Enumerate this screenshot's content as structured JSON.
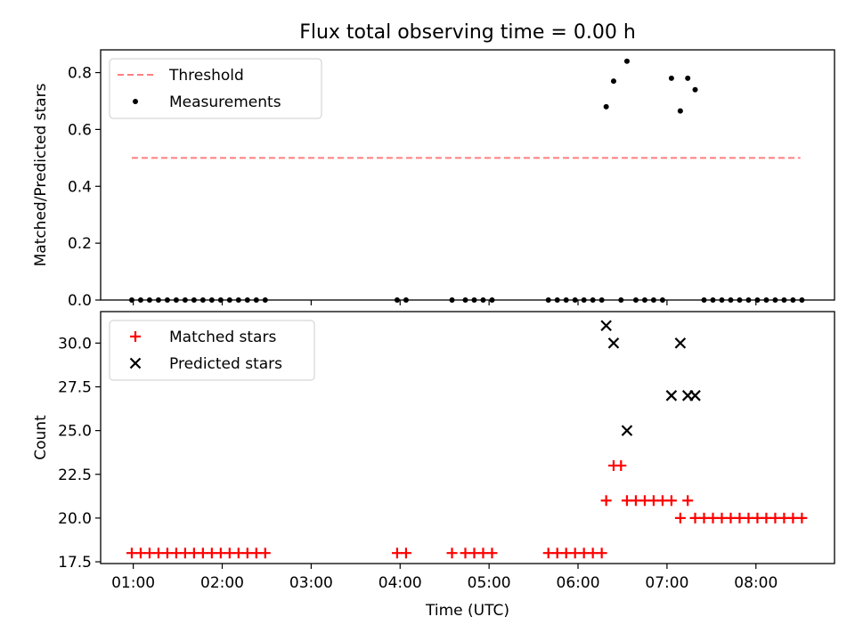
{
  "title": "Flux total observing time = 0.00 h",
  "colors": {
    "threshold": "#ff7f7f",
    "measurements": "#000000",
    "matched": "#ff0000",
    "predicted": "#000000"
  },
  "chart_data": [
    {
      "type": "scatter",
      "ylabel": "Matched/Predicted stars",
      "ylim": [
        0,
        0.88
      ],
      "yticks": [
        0.0,
        0.2,
        0.4,
        0.6,
        0.8
      ],
      "ytick_labels": [
        "0.0",
        "0.2",
        "0.4",
        "0.6",
        "0.8"
      ],
      "xlim": [
        "00:38",
        "08:53"
      ],
      "xticks": [
        "01:00",
        "02:00",
        "03:00",
        "04:00",
        "05:00",
        "06:00",
        "07:00",
        "08:00"
      ],
      "show_xtick_labels": false,
      "grid": false,
      "legend": {
        "placement": "top-left",
        "entries": [
          "Threshold",
          "Measurements"
        ]
      },
      "series": [
        {
          "name": "Threshold",
          "kind": "dashed-line",
          "x": [
            "00:59",
            "08:30"
          ],
          "y": [
            0.5,
            0.5
          ]
        },
        {
          "name": "Measurements",
          "kind": "dots",
          "points": [
            [
              "00:59",
              0
            ],
            [
              "01:05",
              0
            ],
            [
              "01:11",
              0
            ],
            [
              "01:17",
              0
            ],
            [
              "01:23",
              0
            ],
            [
              "01:29",
              0
            ],
            [
              "01:35",
              0
            ],
            [
              "01:41",
              0
            ],
            [
              "01:47",
              0
            ],
            [
              "01:53",
              0
            ],
            [
              "01:59",
              0
            ],
            [
              "02:05",
              0
            ],
            [
              "02:11",
              0
            ],
            [
              "02:17",
              0
            ],
            [
              "02:23",
              0
            ],
            [
              "02:29",
              0
            ],
            [
              "03:58",
              0
            ],
            [
              "04:04",
              0
            ],
            [
              "04:35",
              0
            ],
            [
              "04:44",
              0
            ],
            [
              "04:50",
              0
            ],
            [
              "04:56",
              0
            ],
            [
              "05:02",
              0
            ],
            [
              "05:40",
              0
            ],
            [
              "05:46",
              0
            ],
            [
              "05:52",
              0
            ],
            [
              "05:58",
              0
            ],
            [
              "06:04",
              0
            ],
            [
              "06:10",
              0
            ],
            [
              "06:16",
              0
            ],
            [
              "06:19",
              0.68
            ],
            [
              "06:24",
              0.77
            ],
            [
              "06:29",
              0
            ],
            [
              "06:33",
              0.84
            ],
            [
              "06:39",
              0
            ],
            [
              "06:45",
              0
            ],
            [
              "06:51",
              0
            ],
            [
              "06:57",
              0
            ],
            [
              "07:03",
              0.78
            ],
            [
              "07:09",
              0.665
            ],
            [
              "07:14",
              0.78
            ],
            [
              "07:19",
              0.74
            ],
            [
              "07:25",
              0
            ],
            [
              "07:31",
              0
            ],
            [
              "07:37",
              0
            ],
            [
              "07:43",
              0
            ],
            [
              "07:49",
              0
            ],
            [
              "07:55",
              0
            ],
            [
              "08:01",
              0
            ],
            [
              "08:07",
              0
            ],
            [
              "08:13",
              0
            ],
            [
              "08:19",
              0
            ],
            [
              "08:25",
              0
            ],
            [
              "08:31",
              0
            ]
          ]
        }
      ]
    },
    {
      "type": "scatter",
      "xlabel": "Time (UTC)",
      "ylabel": "Count",
      "ylim": [
        17.4,
        31.8
      ],
      "yticks": [
        17.5,
        20.0,
        22.5,
        25.0,
        27.5,
        30.0
      ],
      "ytick_labels": [
        "17.5",
        "20.0",
        "22.5",
        "25.0",
        "27.5",
        "30.0"
      ],
      "xlim": [
        "00:38",
        "08:53"
      ],
      "xticks": [
        "01:00",
        "02:00",
        "03:00",
        "04:00",
        "05:00",
        "06:00",
        "07:00",
        "08:00"
      ],
      "xtick_labels": [
        "01:00",
        "02:00",
        "03:00",
        "04:00",
        "05:00",
        "06:00",
        "07:00",
        "08:00"
      ],
      "grid": false,
      "legend": {
        "placement": "top-left",
        "entries": [
          "Matched stars",
          "Predicted stars"
        ]
      },
      "series": [
        {
          "name": "Matched stars",
          "kind": "plus",
          "points": [
            [
              "00:59",
              18
            ],
            [
              "01:05",
              18
            ],
            [
              "01:11",
              18
            ],
            [
              "01:17",
              18
            ],
            [
              "01:23",
              18
            ],
            [
              "01:29",
              18
            ],
            [
              "01:35",
              18
            ],
            [
              "01:41",
              18
            ],
            [
              "01:47",
              18
            ],
            [
              "01:53",
              18
            ],
            [
              "01:59",
              18
            ],
            [
              "02:05",
              18
            ],
            [
              "02:11",
              18
            ],
            [
              "02:17",
              18
            ],
            [
              "02:23",
              18
            ],
            [
              "02:29",
              18
            ],
            [
              "03:58",
              18
            ],
            [
              "04:04",
              18
            ],
            [
              "04:35",
              18
            ],
            [
              "04:44",
              18
            ],
            [
              "04:50",
              18
            ],
            [
              "04:56",
              18
            ],
            [
              "05:02",
              18
            ],
            [
              "05:40",
              18
            ],
            [
              "05:46",
              18
            ],
            [
              "05:52",
              18
            ],
            [
              "05:58",
              18
            ],
            [
              "06:04",
              18
            ],
            [
              "06:10",
              18
            ],
            [
              "06:16",
              18
            ],
            [
              "06:19",
              21
            ],
            [
              "06:24",
              23
            ],
            [
              "06:29",
              23
            ],
            [
              "06:33",
              21
            ],
            [
              "06:39",
              21
            ],
            [
              "06:45",
              21
            ],
            [
              "06:51",
              21
            ],
            [
              "06:57",
              21
            ],
            [
              "07:03",
              21
            ],
            [
              "07:09",
              20
            ],
            [
              "07:14",
              21
            ],
            [
              "07:19",
              20
            ],
            [
              "07:25",
              20
            ],
            [
              "07:31",
              20
            ],
            [
              "07:37",
              20
            ],
            [
              "07:43",
              20
            ],
            [
              "07:49",
              20
            ],
            [
              "07:55",
              20
            ],
            [
              "08:01",
              20
            ],
            [
              "08:07",
              20
            ],
            [
              "08:13",
              20
            ],
            [
              "08:19",
              20
            ],
            [
              "08:25",
              20
            ],
            [
              "08:31",
              20
            ]
          ]
        },
        {
          "name": "Predicted stars",
          "kind": "cross",
          "points": [
            [
              "06:19",
              31
            ],
            [
              "06:24",
              30
            ],
            [
              "06:33",
              25
            ],
            [
              "07:03",
              27
            ],
            [
              "07:09",
              30
            ],
            [
              "07:14",
              27
            ],
            [
              "07:19",
              27
            ]
          ]
        }
      ]
    }
  ]
}
